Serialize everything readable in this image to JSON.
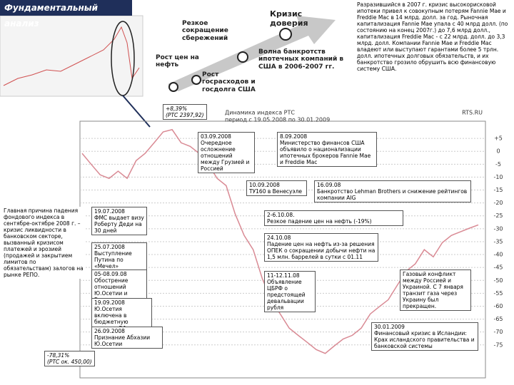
{
  "header": {
    "title": "Фундаментальный анализ"
  },
  "diagram": {
    "labels": [
      "Резкое сокращение сбережений",
      "Рост цен на нефть",
      "Рост госрасходов и госдолга США",
      "Волна банкротств ипотечных компаний в США в 2006-2007 гг.",
      "Кризис доверия"
    ]
  },
  "note": "Разразившийся в 2007 г. кризис высокорисковой ипотеки привел к совокупным потерям Fannie Mae и Freddie Mac в 14 млрд. долл. за год. Рыночная капитализация Fannie Mae упала с 40 млрд долл. (по состоянию на конец 2007г.) до 7,6 млрд долл., капитализация Freddie Mac - с 22 млрд. долл. до 3,3 млрд. долл. Компании Fannie Mae и Freddie Mac владеют или выступают гарантами более 5 трлн. долл. ипотечных долговых обязательств, и их банкротство грозило обрушить всю финансовую систему США.",
  "chart_data": {
    "type": "line",
    "title": "Динамика индекса РТС",
    "subtitle": "период с 19.05.2008 по 30.01.2009",
    "source": "RTS.RU",
    "color": "#d98a94",
    "values": [
      -0.8,
      -5,
      -9.1,
      -10.5,
      -7.7,
      -10.5,
      -3.6,
      -0.8,
      3.3,
      7.5,
      8.4,
      3.3,
      1.9,
      -0.8,
      -5,
      -10.5,
      -13.3,
      -24.3,
      -32.6,
      -38.1,
      -49.2,
      -57.5,
      -63,
      -68.5,
      -71.3,
      -74,
      -76.8,
      -78.3,
      -75.4,
      -72.7,
      -71.3,
      -68.5,
      -63,
      -60.2,
      -57.5,
      -51.9,
      -46.4,
      -43.6,
      -38.1,
      -40.9,
      -35.4,
      -32.6,
      -31.2,
      -29.8,
      -28.5
    ],
    "ylim": [
      -85,
      10
    ],
    "yticks": [
      {
        "value": 5,
        "label": "+5"
      },
      0,
      -5,
      -10,
      -15,
      -20,
      -25,
      -30,
      -35,
      -40,
      -45,
      -50,
      -55,
      -60,
      -65,
      -70,
      -75
    ],
    "grid": true,
    "annotations": [
      {
        "text": "+8,39%",
        "detail": "(РТС 2397,92)"
      },
      {
        "text": "-78,31%",
        "detail": "(РТС ок. 450,00)"
      }
    ]
  },
  "cause": "Главная причина падения фондового индекса в сентябре-октябре 2008 г. – кризис ликвидности в банковском секторе, вызванный кризисом платежей и эрозией (продажей и закрытием лимитов по обязательствам) залогов на рынке РЕПО.",
  "events": [
    {
      "date": "03.09.2008",
      "text": "Очередное осложнение отношений между Грузией и Россией"
    },
    {
      "date": "8.09.2008",
      "text": "Министерство финансов США объявило о национализации ипотечных брокеров Fannie Mae и Freddie Mac"
    },
    {
      "date": "10.09.2008",
      "text": "ТУ160 в Венесуэле"
    },
    {
      "date": "16.09.08",
      "text": "Банкротство Lehman Brothers и снижение рейтингов компании AIG"
    },
    {
      "date": "19.07.2008",
      "text": "ФМС выдает визу Роберту Деди на 30 дней"
    },
    {
      "date": "25.07.2008",
      "text": "Выступление Путина по «Мечел»"
    },
    {
      "date": "05-08.09.08",
      "text": "Обострение отношений Ю.Осетии и Грузии"
    },
    {
      "date": "19.09.2008",
      "text": "Ю.Осетия включена в бюджетную систему РФ"
    },
    {
      "date": "26.09.2008",
      "text": "Признание Абхазии Ю.Осетии"
    },
    {
      "date": "2-6.10.08.",
      "text": "Резкое падение цен на нефть (-19%)"
    },
    {
      "date": "24.10.08",
      "text": "Падение цен на нефть из-за решения ОПЕК о сокращении добычи нефти на 1,5 млн. баррелей в сутки с 01.11"
    },
    {
      "date": "11-12.11.08",
      "text": "Объявление ЦБРФ о предстоящей девальвации рубля"
    },
    {
      "text": "Газовый конфликт между Россией и Украиной. С 7 января транзит газа через Украину был прекращен."
    },
    {
      "date": "30.01.2009",
      "text": "Финансовый кризис в Исландии: Крах исландского правительства и банковской системы"
    }
  ]
}
